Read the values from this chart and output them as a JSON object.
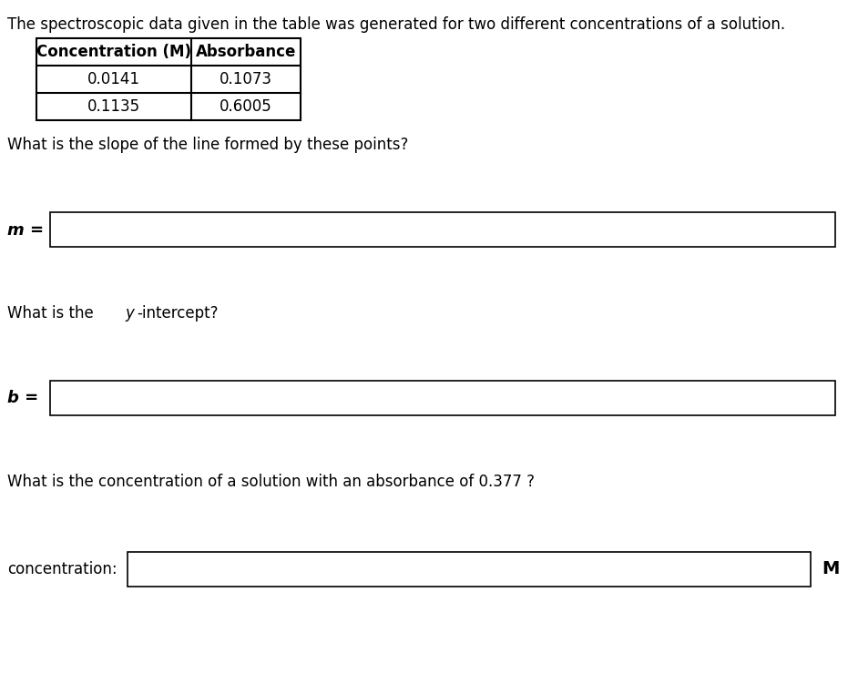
{
  "background_color": "#ffffff",
  "intro_text": "The spectroscopic data given in the table was generated for two different concentrations of a solution.",
  "table_headers": [
    "Concentration (M)",
    "Absorbance"
  ],
  "table_rows": [
    [
      "0.0141",
      "0.1073"
    ],
    [
      "0.1135",
      "0.6005"
    ]
  ],
  "q1_text": "What is the slope of the line formed by these points?",
  "q1_label": "m =",
  "q2_text_parts": [
    "What is the ",
    "y",
    "-intercept?"
  ],
  "q2_label": "b =",
  "q3_text": "What is the concentration of a solution with an absorbance of 0.377 ?",
  "q3_label": "concentration:",
  "q3_suffix": "M",
  "font_size_intro": 12,
  "font_size_table": 12,
  "font_size_question": 12,
  "font_size_label": 12,
  "text_color": "#000000",
  "box_edge_color": "#000000",
  "box_face_color": "#ffffff",
  "table_border_color": "#000000"
}
